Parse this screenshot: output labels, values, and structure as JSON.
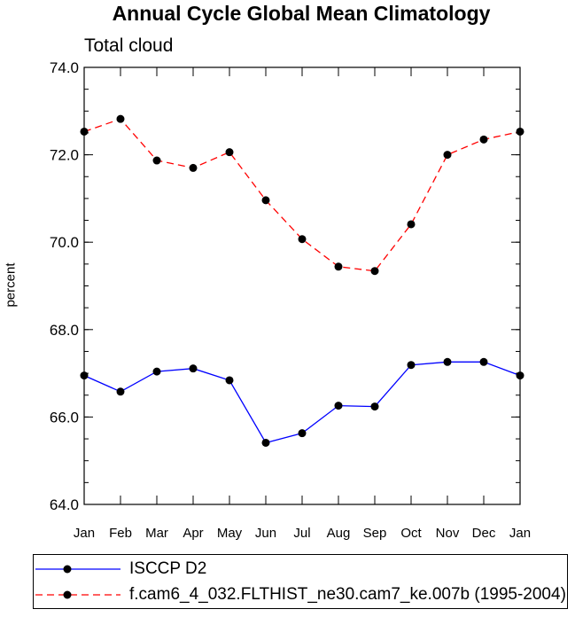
{
  "chart_data": {
    "type": "line",
    "title": "Annual Cycle Global Mean Climatology",
    "subtitle": "Total cloud",
    "ylabel": "percent",
    "xlabel": "",
    "categories": [
      "Jan",
      "Feb",
      "Mar",
      "Apr",
      "May",
      "Jun",
      "Jul",
      "Aug",
      "Sep",
      "Oct",
      "Nov",
      "Dec",
      "Jan"
    ],
    "ylim": [
      64.0,
      74.0
    ],
    "yticks": [
      "64.0",
      "66.0",
      "68.0",
      "70.0",
      "72.0",
      "74.0"
    ],
    "grid": false,
    "legend_position": "bottom",
    "series": [
      {
        "name": "ISCCP D2",
        "color": "#0000ff",
        "line_style": "solid",
        "marker": "filled-circle",
        "values": [
          66.95,
          66.58,
          67.04,
          67.11,
          66.84,
          65.41,
          65.63,
          66.26,
          66.24,
          67.19,
          67.26,
          67.26,
          66.95
        ]
      },
      {
        "name": "f.cam6_4_032.FLTHIST_ne30.cam7_ke.007b (1995-2004)",
        "color": "#ff0000",
        "line_style": "dashed",
        "marker": "filled-circle",
        "values": [
          72.53,
          72.82,
          71.87,
          71.7,
          72.06,
          70.96,
          70.07,
          69.44,
          69.34,
          70.41,
          72.0,
          72.35,
          72.53
        ]
      }
    ]
  }
}
